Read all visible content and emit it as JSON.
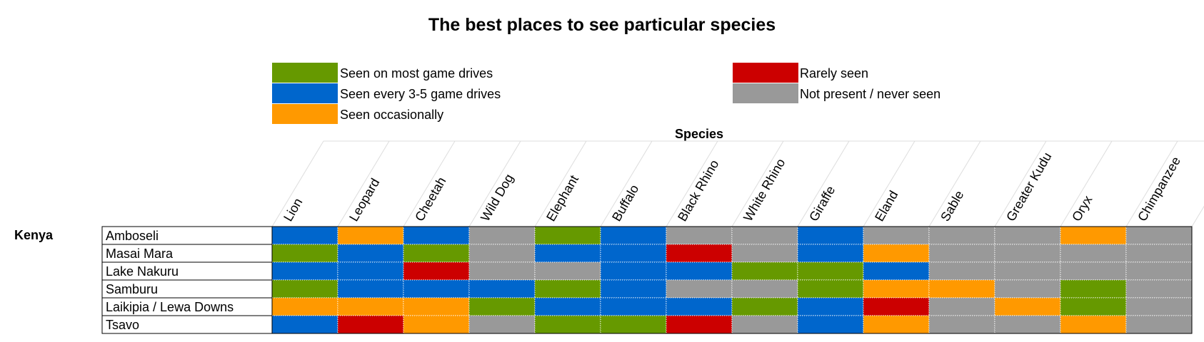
{
  "title": "The best places to see particular species",
  "species_header": "Species",
  "colors": {
    "green": "#669900",
    "blue": "#0066CC",
    "orange": "#FF9900",
    "red": "#CC0000",
    "gray": "#999999"
  },
  "legend": [
    {
      "label": "Seen on most game drives",
      "color": "green"
    },
    {
      "label": "Seen every 3-5 game drives",
      "color": "blue"
    },
    {
      "label": "Seen occasionally",
      "color": "orange"
    },
    {
      "label": "Rarely seen",
      "color": "red"
    },
    {
      "label": "Not present / never seen",
      "color": "gray"
    }
  ],
  "chart_data": {
    "type": "heatmap",
    "title": "The best places to see particular species",
    "x_title": "Species",
    "country": "Kenya",
    "species": [
      "Lion",
      "Leopard",
      "Cheetah",
      "Wild Dog",
      "Elephant",
      "Buffalo",
      "Black Rhino",
      "White Rhino",
      "Giraffe",
      "Eland",
      "Sable",
      "Greater Kudu",
      "Oryx",
      "Chimpanzee"
    ],
    "rows": [
      {
        "name": "Amboseli",
        "values": [
          "blue",
          "orange",
          "blue",
          "gray",
          "green",
          "blue",
          "gray",
          "gray",
          "blue",
          "gray",
          "gray",
          "gray",
          "orange",
          "gray"
        ]
      },
      {
        "name": "Masai Mara",
        "values": [
          "green",
          "blue",
          "green",
          "gray",
          "blue",
          "blue",
          "red",
          "gray",
          "blue",
          "orange",
          "gray",
          "gray",
          "gray",
          "gray"
        ]
      },
      {
        "name": "Lake Nakuru",
        "values": [
          "blue",
          "blue",
          "red",
          "gray",
          "gray",
          "blue",
          "blue",
          "green",
          "green",
          "blue",
          "gray",
          "gray",
          "gray",
          "gray"
        ]
      },
      {
        "name": "Samburu",
        "values": [
          "green",
          "blue",
          "blue",
          "blue",
          "green",
          "blue",
          "gray",
          "gray",
          "green",
          "orange",
          "orange",
          "gray",
          "green",
          "gray"
        ]
      },
      {
        "name": "Laikipia / Lewa Downs",
        "values": [
          "orange",
          "orange",
          "orange",
          "green",
          "blue",
          "blue",
          "blue",
          "green",
          "blue",
          "red",
          "gray",
          "orange",
          "green",
          "gray"
        ]
      },
      {
        "name": "Tsavo",
        "values": [
          "blue",
          "red",
          "orange",
          "gray",
          "green",
          "green",
          "red",
          "gray",
          "blue",
          "orange",
          "gray",
          "gray",
          "orange",
          "gray"
        ]
      }
    ]
  }
}
